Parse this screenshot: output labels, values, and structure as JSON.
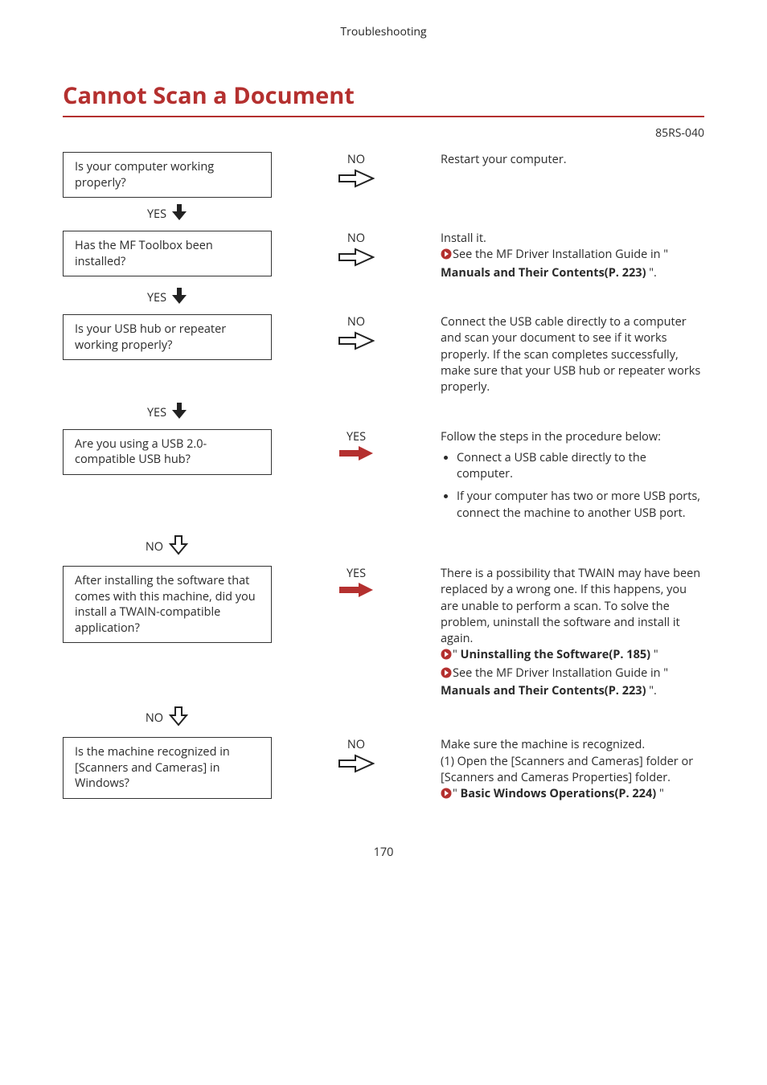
{
  "header_text": "Troubleshooting",
  "page_title": "Cannot Scan a Document",
  "doc_code": "85RS-040",
  "footer_page": "170",
  "icons": {
    "right_hollow_color": "#222222",
    "right_solid_fill": "#b4302f",
    "down_solid_fill": "#222222",
    "down_hollow_stroke": "#222222",
    "bullet_fill": "#b4302f"
  },
  "steps": [
    {
      "question": "Is your computer working properly?",
      "branch_label": "NO",
      "branch_arrow": "right-hollow",
      "down_label": "YES",
      "down_arrow": "down-solid",
      "answer_lines": [
        {
          "parts": [
            {
              "t": "Restart your computer."
            }
          ]
        }
      ]
    },
    {
      "question": "Has the MF Toolbox been installed?",
      "branch_label": "NO",
      "branch_arrow": "right-hollow",
      "down_label": "YES",
      "down_arrow": "down-solid",
      "answer_lines": [
        {
          "parts": [
            {
              "t": "Install it."
            }
          ]
        },
        {
          "parts": [
            {
              "bullet": true
            },
            {
              "t": "See the MF Driver Installation Guide in \" "
            },
            {
              "t": "Manuals and Their Contents(P. 223)",
              "bold": true
            },
            {
              "t": " \"."
            }
          ]
        }
      ]
    },
    {
      "question": "Is your USB hub or repeater working properly?",
      "branch_label": "NO",
      "branch_arrow": "right-hollow",
      "down_label": "YES",
      "down_arrow": "down-solid",
      "answer_lines": [
        {
          "parts": [
            {
              "t": "Connect the USB cable directly to a computer and scan your document to see if it works properly. If the scan completes successfully, make sure that your USB hub or repeater works properly."
            }
          ]
        }
      ]
    },
    {
      "question": "Are you using a USB 2.0-compatible USB hub?",
      "branch_label": "YES",
      "branch_arrow": "right-solid",
      "down_label": "NO",
      "down_arrow": "down-hollow",
      "answer_lines": [
        {
          "parts": [
            {
              "t": "Follow the steps in the procedure below:"
            }
          ]
        }
      ],
      "answer_list": [
        "Connect a USB cable directly to the computer.",
        "If your computer has two or more USB ports, connect the machine to another USB port."
      ]
    },
    {
      "question": "After installing the software that comes with this machine, did you install a TWAIN-compatible application?",
      "branch_label": "YES",
      "branch_arrow": "right-solid",
      "down_label": "NO",
      "down_arrow": "down-hollow",
      "answer_lines": [
        {
          "parts": [
            {
              "t": "There is a possibility that TWAIN may have been replaced by a wrong one. If this happens, you are unable to perform a scan. To solve the problem, uninstall the software and install it again."
            }
          ]
        },
        {
          "parts": [
            {
              "bullet": true
            },
            {
              "t": "\" "
            },
            {
              "t": "Uninstalling the Software(P. 185)",
              "bold": true
            },
            {
              "t": " \""
            }
          ]
        },
        {
          "parts": [
            {
              "bullet": true
            },
            {
              "t": "See the MF Driver Installation Guide in \" "
            },
            {
              "t": "Manuals and Their Contents(P. 223)",
              "bold": true
            },
            {
              "t": " \"."
            }
          ]
        }
      ]
    },
    {
      "question": "Is the machine recognized in [Scanners and Cameras] in Windows?",
      "branch_label": "NO",
      "branch_arrow": "right-hollow",
      "down_label": "",
      "down_arrow": "",
      "answer_lines": [
        {
          "parts": [
            {
              "t": "Make sure the machine is recognized."
            }
          ]
        },
        {
          "parts": [
            {
              "t": "(1) Open the [Scanners and Cameras] folder or [Scanners and Cameras Properties] folder."
            }
          ]
        },
        {
          "parts": [
            {
              "bullet": true
            },
            {
              "t": "\" "
            },
            {
              "t": "Basic Windows Operations(P. 224)",
              "bold": true
            },
            {
              "t": " \""
            }
          ]
        }
      ]
    }
  ]
}
